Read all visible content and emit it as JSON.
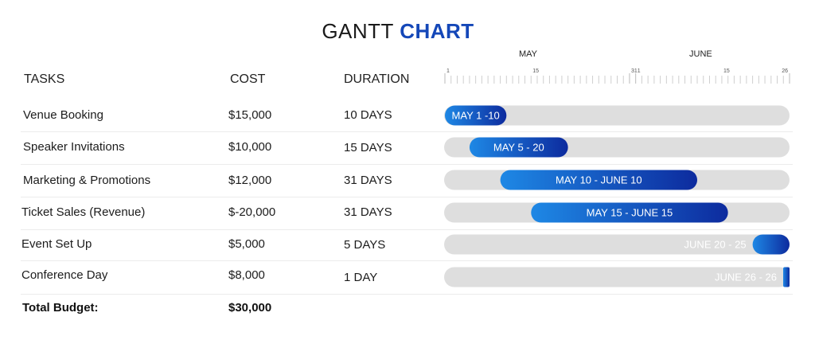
{
  "title": {
    "part1": "GANTT",
    "part2": "CHART"
  },
  "headers": {
    "tasks": "TASKS",
    "cost": "COST",
    "duration": "DURATION"
  },
  "timeline": {
    "months": [
      "MAY",
      "JUNE"
    ],
    "tick_labels": [
      "1",
      "15",
      "31",
      "1",
      "15",
      "26"
    ]
  },
  "tasks": [
    {
      "name": "Venue Booking",
      "cost": "$15,000",
      "duration": "10 DAYS",
      "bar_label": "MAY 1 -10"
    },
    {
      "name": "Speaker Invitations",
      "cost": "$10,000",
      "duration": "15 DAYS",
      "bar_label": "MAY 5 - 20"
    },
    {
      "name": "Marketing & Promotions",
      "cost": "$12,000",
      "duration": "31 DAYS",
      "bar_label": "MAY 10 - JUNE 10"
    },
    {
      "name": "Ticket Sales (Revenue)",
      "cost": "$-20,000",
      "duration": "31 DAYS",
      "bar_label": "MAY 15 - JUNE 15"
    },
    {
      "name": "Event Set Up",
      "cost": "$5,000",
      "duration": "5 DAYS",
      "bar_label": "JUNE 20 - 25"
    },
    {
      "name": "Conference Day",
      "cost": "$8,000",
      "duration": "1 DAY",
      "bar_label": "JUNE 26 - 26"
    }
  ],
  "total": {
    "label": "Total Budget:",
    "value": "$30,000"
  },
  "chart_data": {
    "type": "gantt",
    "title": "GANTT CHART",
    "x_range": [
      "2024-05-01",
      "2024-06-26"
    ],
    "tasks": [
      {
        "name": "Venue Booking",
        "start": "05-01",
        "end": "05-10"
      },
      {
        "name": "Speaker Invitations",
        "start": "05-05",
        "end": "05-20"
      },
      {
        "name": "Marketing & Promotions",
        "start": "05-10",
        "end": "06-10"
      },
      {
        "name": "Ticket Sales (Revenue)",
        "start": "05-15",
        "end": "06-15"
      },
      {
        "name": "Event Set Up",
        "start": "06-20",
        "end": "06-25"
      },
      {
        "name": "Conference Day",
        "start": "06-26",
        "end": "06-26"
      }
    ],
    "colors": {
      "bar_start": "#1e88e5",
      "bar_end": "#0d2b9e",
      "track": "#dedede"
    }
  }
}
